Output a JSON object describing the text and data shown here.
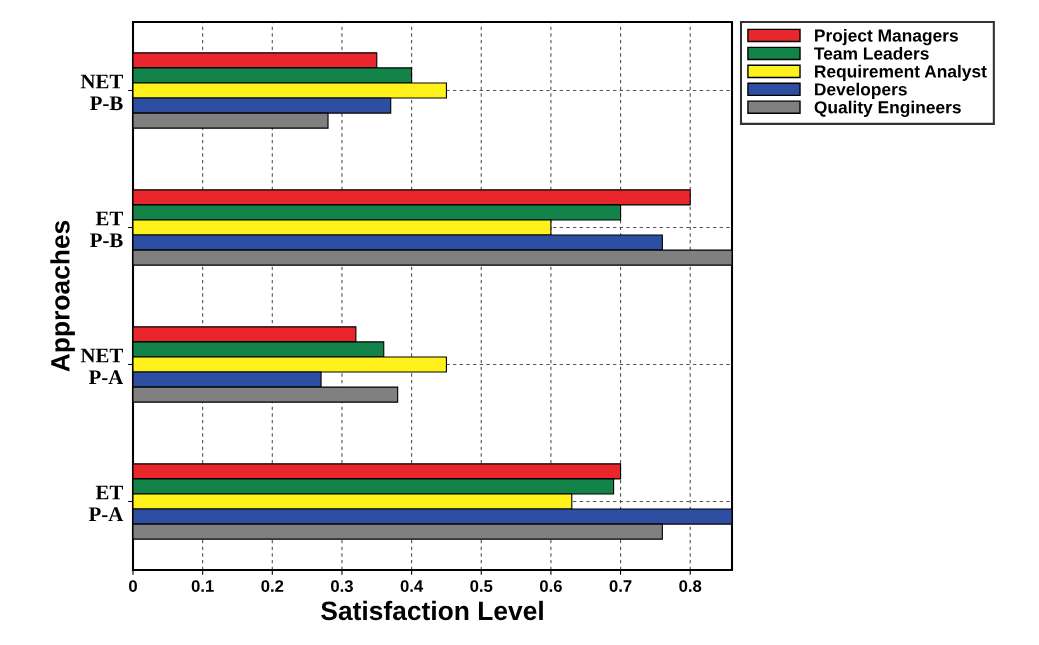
{
  "chart_data": {
    "type": "bar",
    "orientation": "horizontal",
    "xlabel": "Satisfaction Level",
    "ylabel": "Approaches",
    "categories": [
      "NET\nP-B",
      "ET\nP-B",
      "NET\nP-A",
      "ET\nP-A"
    ],
    "series": [
      {
        "name": "Project Managers",
        "color": "#e8262b",
        "values": [
          0.35,
          0.8,
          0.32,
          0.7
        ]
      },
      {
        "name": "Team Leaders",
        "color": "#13834a",
        "values": [
          0.4,
          0.7,
          0.36,
          0.69
        ]
      },
      {
        "name": "Requirement Analyst",
        "color": "#fff21c",
        "values": [
          0.45,
          0.6,
          0.45,
          0.63
        ]
      },
      {
        "name": "Developers",
        "color": "#2e4ea2",
        "values": [
          0.37,
          0.76,
          0.27,
          0.86
        ]
      },
      {
        "name": "Quality Engineers",
        "color": "#808080",
        "values": [
          0.28,
          0.86,
          0.38,
          0.76
        ]
      }
    ],
    "xlim": [
      0,
      0.86
    ],
    "xticks": [
      0,
      0.1,
      0.2,
      0.3,
      0.4,
      0.5,
      0.6,
      0.7,
      0.8
    ],
    "grid": true,
    "legend": "top right"
  }
}
